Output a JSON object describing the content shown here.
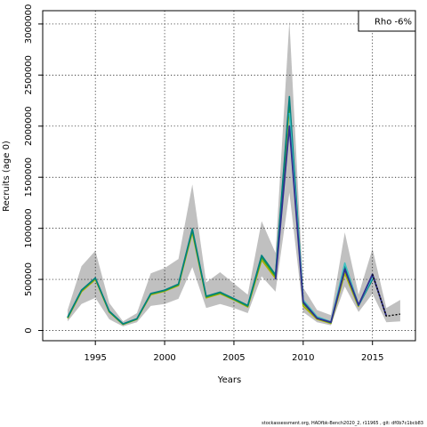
{
  "chart_data": {
    "type": "line",
    "title": "",
    "xlabel": "Years",
    "ylabel": "Recruits (age 0)",
    "xlim": [
      1991.2,
      2018.1
    ],
    "ylim": [
      -100000,
      3130000
    ],
    "x_ticks": [
      1995,
      2000,
      2005,
      2010,
      2015
    ],
    "y_ticks": [
      0,
      500000,
      1000000,
      1500000,
      2000000,
      2500000,
      3000000
    ],
    "y_tick_labels": [
      "0",
      "500000",
      "1000000",
      "1500000",
      "2000000",
      "2500000",
      "3000000"
    ],
    "grid": true,
    "legend": {
      "text": "Rho -6%",
      "position": "top-right"
    },
    "footer": "stockassessment.org, HADfbk-Bench2020_2, r11965 , git: df0b7c1bcb83",
    "confidence_band": {
      "x": [
        1993,
        1994,
        1995,
        1996,
        1997,
        1998,
        1999,
        2000,
        2001,
        2002,
        2003,
        2004,
        2005,
        2006,
        2007,
        2008,
        2009,
        2010,
        2011,
        2012,
        2013,
        2014,
        2015,
        2016,
        2017
      ],
      "lower": [
        90000,
        260000,
        320000,
        110000,
        40000,
        80000,
        240000,
        260000,
        310000,
        620000,
        220000,
        260000,
        220000,
        170000,
        530000,
        380000,
        1350000,
        180000,
        80000,
        50000,
        430000,
        180000,
        360000,
        80000,
        90000
      ],
      "upper": [
        200000,
        630000,
        780000,
        270000,
        90000,
        170000,
        560000,
        610000,
        700000,
        1430000,
        470000,
        570000,
        460000,
        350000,
        1070000,
        760000,
        3030000,
        420000,
        200000,
        150000,
        960000,
        350000,
        800000,
        220000,
        300000
      ]
    },
    "series": [
      {
        "color": "#b0b000",
        "width": 1.6,
        "x": [
          1993,
          1994,
          1995,
          1996,
          1997,
          1998,
          1999,
          2000,
          2001,
          2002,
          2003,
          2004,
          2005,
          2006,
          2007,
          2008,
          2009,
          2010,
          2011,
          2012,
          2013,
          2014
        ],
        "values": [
          120000,
          380000,
          500000,
          180000,
          60000,
          110000,
          350000,
          385000,
          440000,
          960000,
          320000,
          360000,
          300000,
          230000,
          690000,
          510000,
          2200000,
          240000,
          110000,
          70000,
          560000,
          230000
        ]
      },
      {
        "color": "#2ca02c",
        "width": 1.6,
        "x": [
          1993,
          1994,
          1995,
          1996,
          1997,
          1998,
          1999,
          2000,
          2001,
          2002,
          2003,
          2004,
          2005,
          2006,
          2007,
          2008,
          2009,
          2010,
          2011,
          2012,
          2013,
          2014
        ],
        "values": [
          125000,
          390000,
          510000,
          185000,
          62000,
          112000,
          358000,
          390000,
          448000,
          980000,
          328000,
          368000,
          305000,
          238000,
          715000,
          530000,
          2250000,
          265000,
          120000,
          75000,
          595000,
          240000
        ]
      },
      {
        "color": "#008080",
        "width": 1.6,
        "x": [
          1993,
          1994,
          1995,
          1996,
          1997,
          1998,
          1999,
          2000,
          2001,
          2002,
          2003,
          2004,
          2005,
          2006,
          2007,
          2008,
          2009,
          2010,
          2011,
          2012,
          2013,
          2014,
          2015
        ],
        "values": [
          130000,
          395000,
          515000,
          190000,
          65000,
          115000,
          362000,
          395000,
          455000,
          995000,
          335000,
          375000,
          312000,
          245000,
          735000,
          545000,
          2290000,
          290000,
          128000,
          80000,
          630000,
          245000,
          500000
        ]
      },
      {
        "color": "#40c0c0",
        "width": 1.6,
        "x": [
          2009,
          2010,
          2011,
          2012,
          2013,
          2014,
          2015
        ],
        "values": [
          2130000,
          300000,
          135000,
          85000,
          660000,
          250000,
          520000
        ]
      },
      {
        "color": "#303090",
        "width": 1.8,
        "x": [
          2008,
          2009,
          2010,
          2011,
          2012,
          2013,
          2014,
          2015,
          2016
        ],
        "values": [
          500000,
          2000000,
          280000,
          120000,
          80000,
          600000,
          250000,
          550000,
          140000
        ]
      },
      {
        "color": "#000000",
        "width": 1.4,
        "dashed": true,
        "x": [
          2015,
          2016,
          2017
        ],
        "values": [
          550000,
          140000,
          160000
        ]
      }
    ]
  }
}
